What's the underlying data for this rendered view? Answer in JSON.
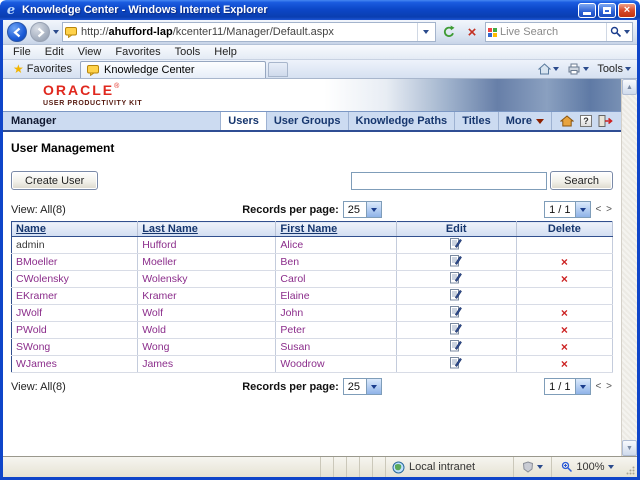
{
  "window": {
    "title": "Knowledge Center - Windows Internet Explorer"
  },
  "browser": {
    "url_prefix": "http://",
    "url_host": "ahufford-lap",
    "url_path": "/kcenter11/Manager/Default.aspx",
    "live_search_placeholder": "Live Search",
    "menu_items": [
      "File",
      "Edit",
      "View",
      "Favorites",
      "Tools",
      "Help"
    ],
    "favorites_label": "Favorites",
    "tab_title": "Knowledge Center",
    "tools_label": "Tools"
  },
  "page": {
    "brand_name": "ORACLE",
    "brand_reg": "®",
    "brand_sub": "USER PRODUCTIVITY KIT",
    "manager_label": "Manager",
    "tabs": [
      {
        "label": "Users",
        "active": true
      },
      {
        "label": "User Groups",
        "active": false
      },
      {
        "label": "Knowledge Paths",
        "active": false
      },
      {
        "label": "Titles",
        "active": false
      },
      {
        "label": "More",
        "active": false
      }
    ],
    "heading": "User Management",
    "create_user_button": "Create User",
    "search_button": "Search",
    "search_value": "",
    "view_label": "View:",
    "view_value": "All(8)",
    "records_per_page_label": "Records per page:",
    "records_per_page_value": "25",
    "page_indicator": "1 / 1",
    "pager_prev": "<",
    "pager_next": ">",
    "table": {
      "columns": [
        "Name",
        "Last Name",
        "First Name",
        "Edit",
        "Delete"
      ],
      "rows": [
        {
          "name": "admin",
          "last": "Hufford",
          "first": "Alice",
          "deletable": false
        },
        {
          "name": "BMoeller",
          "last": "Moeller",
          "first": "Ben",
          "deletable": true
        },
        {
          "name": "CWolensky",
          "last": "Wolensky",
          "first": "Carol",
          "deletable": true
        },
        {
          "name": "EKramer",
          "last": "Kramer",
          "first": "Elaine",
          "deletable": false
        },
        {
          "name": "JWolf",
          "last": "Wolf",
          "first": "John",
          "deletable": true
        },
        {
          "name": "PWold",
          "last": "Wold",
          "first": "Peter",
          "deletable": true
        },
        {
          "name": "SWong",
          "last": "Wong",
          "first": "Susan",
          "deletable": true
        },
        {
          "name": "WJames",
          "last": "James",
          "first": "Woodrow",
          "deletable": true
        }
      ]
    }
  },
  "statusbar": {
    "zone_label": "Local intranet",
    "zoom_level": "100%"
  },
  "colors": {
    "oracle_red": "#e0281e",
    "link_purple": "#8b2d8b",
    "delete_red": "#cc2222",
    "header_navy": "#16366e",
    "titlebar_blue": "#0c47c8"
  }
}
